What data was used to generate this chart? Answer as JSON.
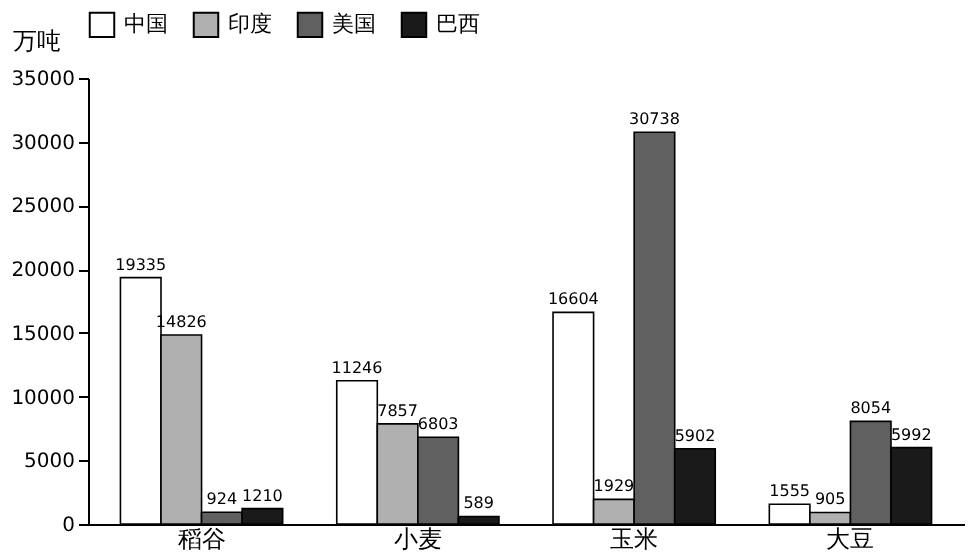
{
  "chart_data": {
    "type": "bar",
    "ylabel": "万吨",
    "categories": [
      "稻谷",
      "小麦",
      "玉米",
      "大豆"
    ],
    "series": [
      {
        "name": "中国",
        "color": "#ffffff",
        "values": [
          19335,
          11246,
          16604,
          1555
        ]
      },
      {
        "name": "印度",
        "color": "#b0b0b0",
        "values": [
          14826,
          7857,
          1929,
          905
        ]
      },
      {
        "name": "美国",
        "color": "#606060",
        "values": [
          924,
          6803,
          30738,
          8054
        ]
      },
      {
        "name": "巴西",
        "color": "#1a1a1a",
        "values": [
          1210,
          589,
          5902,
          5992
        ]
      }
    ],
    "ylim": [
      0,
      35000
    ],
    "yticks": [
      0,
      5000,
      10000,
      15000,
      20000,
      25000,
      30000,
      35000
    ],
    "data_labels": true,
    "legend": "top",
    "grid": false
  }
}
